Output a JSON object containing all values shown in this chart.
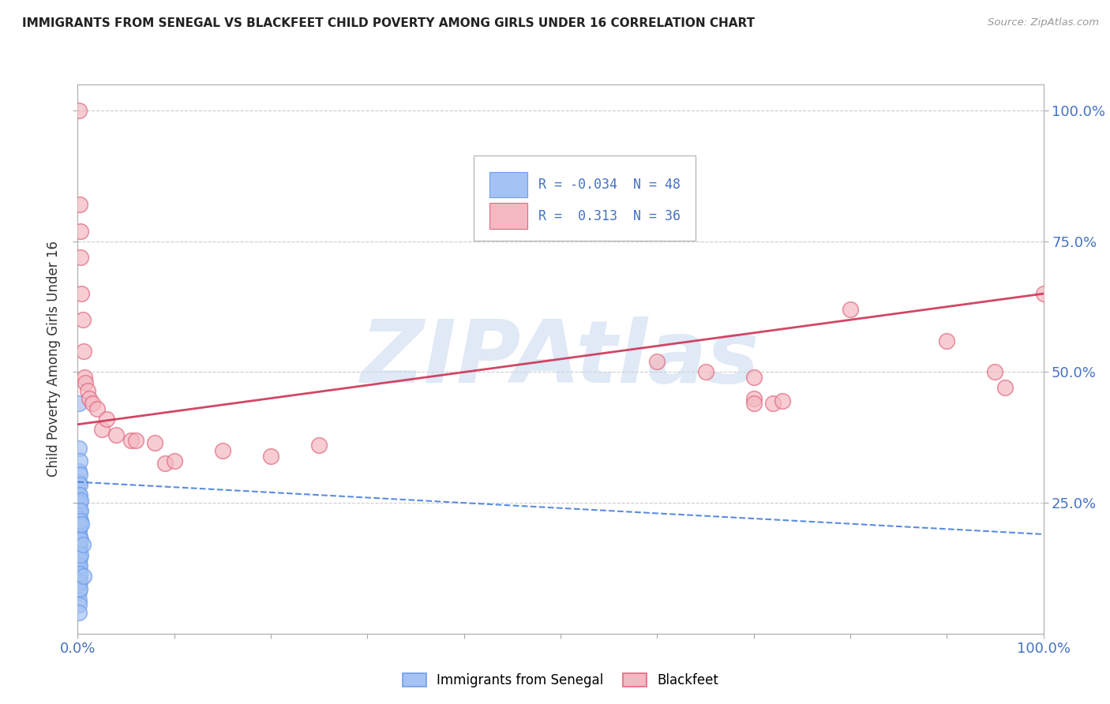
{
  "title": "IMMIGRANTS FROM SENEGAL VS BLACKFEET CHILD POVERTY AMONG GIRLS UNDER 16 CORRELATION CHART",
  "source": "Source: ZipAtlas.com",
  "ylabel": "Child Poverty Among Girls Under 16",
  "watermark": "ZIPAtlas",
  "background_color": "#ffffff",
  "grid_color": "#cccccc",
  "senegal_color": "#a4c2f4",
  "blackfeet_color": "#f4b8c1",
  "senegal_edge_color": "#6d9eeb",
  "blackfeet_edge_color": "#e06c80",
  "senegal_line_color": "#3d78d8",
  "blackfeet_line_color": "#cc3355",
  "legend_senegal_R": -0.034,
  "legend_senegal_N": 48,
  "legend_blackfeet_R": 0.313,
  "legend_blackfeet_N": 36,
  "senegal_points": [
    [
      0.0,
      0.28
    ],
    [
      0.0,
      0.255
    ],
    [
      0.001,
      0.44
    ],
    [
      0.001,
      0.355
    ],
    [
      0.001,
      0.31
    ],
    [
      0.001,
      0.29
    ],
    [
      0.001,
      0.265
    ],
    [
      0.001,
      0.245
    ],
    [
      0.001,
      0.235
    ],
    [
      0.001,
      0.22
    ],
    [
      0.001,
      0.205
    ],
    [
      0.001,
      0.195
    ],
    [
      0.001,
      0.185
    ],
    [
      0.001,
      0.175
    ],
    [
      0.001,
      0.165
    ],
    [
      0.001,
      0.155
    ],
    [
      0.001,
      0.145
    ],
    [
      0.001,
      0.135
    ],
    [
      0.001,
      0.125
    ],
    [
      0.001,
      0.11
    ],
    [
      0.001,
      0.095
    ],
    [
      0.001,
      0.08
    ],
    [
      0.001,
      0.065
    ],
    [
      0.001,
      0.055
    ],
    [
      0.001,
      0.04
    ],
    [
      0.002,
      0.33
    ],
    [
      0.002,
      0.305
    ],
    [
      0.002,
      0.285
    ],
    [
      0.002,
      0.265
    ],
    [
      0.002,
      0.25
    ],
    [
      0.002,
      0.235
    ],
    [
      0.002,
      0.22
    ],
    [
      0.002,
      0.205
    ],
    [
      0.002,
      0.185
    ],
    [
      0.002,
      0.165
    ],
    [
      0.002,
      0.145
    ],
    [
      0.002,
      0.13
    ],
    [
      0.002,
      0.115
    ],
    [
      0.002,
      0.1
    ],
    [
      0.002,
      0.085
    ],
    [
      0.003,
      0.255
    ],
    [
      0.003,
      0.235
    ],
    [
      0.003,
      0.215
    ],
    [
      0.003,
      0.18
    ],
    [
      0.003,
      0.15
    ],
    [
      0.004,
      0.21
    ],
    [
      0.005,
      0.17
    ],
    [
      0.006,
      0.11
    ]
  ],
  "blackfeet_points": [
    [
      0.001,
      1.0
    ],
    [
      0.002,
      0.82
    ],
    [
      0.003,
      0.77
    ],
    [
      0.003,
      0.72
    ],
    [
      0.004,
      0.65
    ],
    [
      0.005,
      0.6
    ],
    [
      0.006,
      0.54
    ],
    [
      0.007,
      0.49
    ],
    [
      0.008,
      0.48
    ],
    [
      0.01,
      0.465
    ],
    [
      0.012,
      0.45
    ],
    [
      0.015,
      0.44
    ],
    [
      0.02,
      0.43
    ],
    [
      0.025,
      0.39
    ],
    [
      0.03,
      0.41
    ],
    [
      0.04,
      0.38
    ],
    [
      0.055,
      0.37
    ],
    [
      0.06,
      0.37
    ],
    [
      0.08,
      0.365
    ],
    [
      0.09,
      0.325
    ],
    [
      0.1,
      0.33
    ],
    [
      0.15,
      0.35
    ],
    [
      0.2,
      0.34
    ],
    [
      0.25,
      0.36
    ],
    [
      0.6,
      0.52
    ],
    [
      0.65,
      0.5
    ],
    [
      0.7,
      0.49
    ],
    [
      0.7,
      0.45
    ],
    [
      0.7,
      0.44
    ],
    [
      0.72,
      0.44
    ],
    [
      0.73,
      0.445
    ],
    [
      0.8,
      0.62
    ],
    [
      0.9,
      0.56
    ],
    [
      0.95,
      0.5
    ],
    [
      0.96,
      0.47
    ],
    [
      1.0,
      0.65
    ]
  ],
  "senegal_line": [
    0.0,
    1.0,
    0.29,
    0.19
  ],
  "blackfeet_line": [
    0.0,
    1.0,
    0.4,
    0.65
  ],
  "xlim": [
    0.0,
    1.0
  ],
  "ylim": [
    0.0,
    1.05
  ],
  "yticks": [
    0.25,
    0.5,
    0.75,
    1.0
  ],
  "ytick_labels": [
    "25.0%",
    "50.0%",
    "75.0%",
    "100.0%"
  ],
  "xtick_positions": [
    0.0,
    0.1,
    0.2,
    0.3,
    0.4,
    0.5,
    0.6,
    0.7,
    0.8,
    0.9,
    1.0
  ],
  "xtick_labels": [
    "0.0%",
    "",
    "",
    "",
    "",
    "",
    "",
    "",
    "",
    "",
    "100.0%"
  ]
}
